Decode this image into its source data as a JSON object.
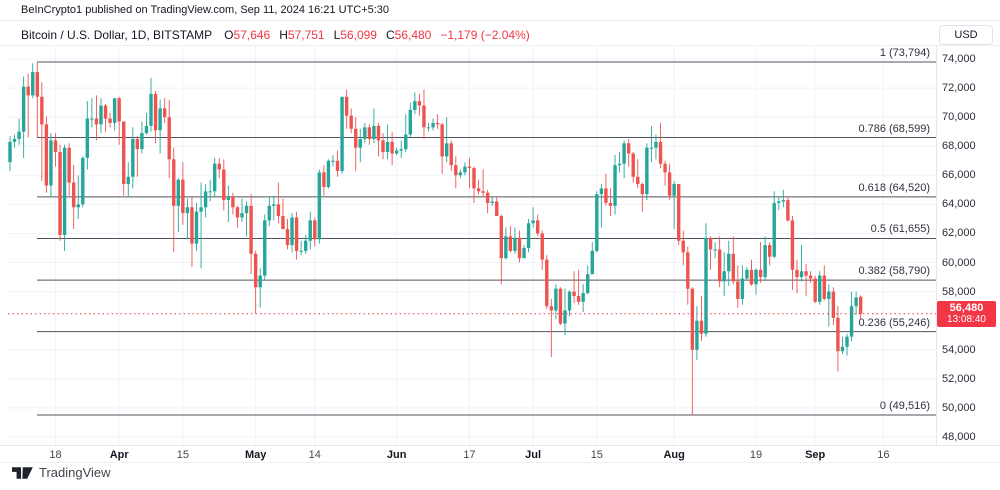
{
  "attribution": "BeInCrypto1 published on TradingView.com, Sep 11, 2024 16:21 UTC+5:30",
  "header": {
    "symbol": "Bitcoin / U.S. Dollar, 1D, BITSTAMP",
    "ohlc": [
      {
        "k": "O",
        "v": "57,646"
      },
      {
        "k": "H",
        "v": "57,751"
      },
      {
        "k": "L",
        "v": "56,099"
      },
      {
        "k": "C",
        "v": "56,480"
      }
    ],
    "change": "−1,179 (−2.04%)"
  },
  "axis_currency": "USD",
  "price_tag": {
    "price": "56,480",
    "countdown": "13:08:40"
  },
  "watermark": "TradingView",
  "colors": {
    "up": "#26a69a",
    "down": "#ef5350",
    "accent_red": "#f23645",
    "grid": "#f0f3fa",
    "fib_line": "#50535e",
    "text": "#131722"
  },
  "fib_levels": [
    {
      "label": "1 (73,794)",
      "price": 73794
    },
    {
      "label": "0.786 (68,599)",
      "price": 68599
    },
    {
      "label": "0.618 (64,520)",
      "price": 64520
    },
    {
      "label": "0.5 (61,655)",
      "price": 61655
    },
    {
      "label": "0.382 (58,790)",
      "price": 58790
    },
    {
      "label": "0.236 (55,246)",
      "price": 55246
    },
    {
      "label": "0 (49,516)",
      "price": 49516
    }
  ],
  "chart_data": {
    "type": "candlestick",
    "title": "Bitcoin / U.S. Dollar, 1D, BITSTAMP",
    "interval": "1D",
    "start_date": "2024-03-08",
    "end_date": "2024-09-11",
    "last_price": 56480,
    "grid": true,
    "y_axis": {
      "range": [
        48000,
        74000
      ],
      "ticks": [
        {
          "price": 74000,
          "label": "74,000"
        },
        {
          "price": 72000,
          "label": "72,000"
        },
        {
          "price": 70000,
          "label": "70,000"
        },
        {
          "price": 68000,
          "label": "68,000"
        },
        {
          "price": 66000,
          "label": "66,000"
        },
        {
          "price": 64000,
          "label": "64,000"
        },
        {
          "price": 62000,
          "label": "62,000"
        },
        {
          "price": 60000,
          "label": "60,000"
        },
        {
          "price": 58000,
          "label": "58,000"
        },
        {
          "price": 54000,
          "label": "54,000"
        },
        {
          "price": 52000,
          "label": "52,000"
        },
        {
          "price": 50000,
          "label": "50,000"
        },
        {
          "price": 48000,
          "label": "48,000"
        }
      ]
    },
    "x_axis": {
      "ticks": [
        {
          "label": "18",
          "day": 10,
          "bold": false
        },
        {
          "label": "Apr",
          "day": 24,
          "bold": true
        },
        {
          "label": "15",
          "day": 38,
          "bold": false
        },
        {
          "label": "May",
          "day": 54,
          "bold": true
        },
        {
          "label": "14",
          "day": 67,
          "bold": false
        },
        {
          "label": "Jun",
          "day": 85,
          "bold": true
        },
        {
          "label": "17",
          "day": 101,
          "bold": false
        },
        {
          "label": "Jul",
          "day": 115,
          "bold": true
        },
        {
          "label": "15",
          "day": 129,
          "bold": false
        },
        {
          "label": "Aug",
          "day": 146,
          "bold": true
        },
        {
          "label": "19",
          "day": 164,
          "bold": false
        },
        {
          "label": "Sep",
          "day": 177,
          "bold": true
        },
        {
          "label": "16",
          "day": 192,
          "bold": false
        }
      ]
    },
    "candles": [
      [
        66900,
        68700,
        66300,
        68300
      ],
      [
        68300,
        68800,
        67900,
        68500
      ],
      [
        68500,
        69900,
        68100,
        69000
      ],
      [
        69000,
        72800,
        67200,
        72100
      ],
      [
        72100,
        73000,
        68600,
        71500
      ],
      [
        71500,
        73700,
        71300,
        73100
      ],
      [
        73100,
        73794,
        68600,
        71400
      ],
      [
        71400,
        72400,
        65600,
        69500
      ],
      [
        69500,
        70050,
        64800,
        65300
      ],
      [
        65300,
        68900,
        64500,
        68400
      ],
      [
        68400,
        68900,
        66600,
        67600
      ],
      [
        67600,
        68100,
        61500,
        61900
      ],
      [
        61900,
        68100,
        60800,
        67900
      ],
      [
        67900,
        68200,
        64600,
        65500
      ],
      [
        65500,
        66700,
        62300,
        63800
      ],
      [
        63800,
        66000,
        63000,
        64000
      ],
      [
        64000,
        67300,
        63800,
        67200
      ],
      [
        67200,
        71100,
        66400,
        69900
      ],
      [
        69900,
        71300,
        69300,
        69900
      ],
      [
        69900,
        71500,
        68400,
        69500
      ],
      [
        69500,
        71300,
        68900,
        70800
      ],
      [
        70800,
        70900,
        69000,
        69900
      ],
      [
        69900,
        70300,
        69300,
        69600
      ],
      [
        69600,
        71300,
        69100,
        71300
      ],
      [
        71300,
        71400,
        68100,
        69700
      ],
      [
        69700,
        69700,
        64600,
        65400
      ],
      [
        65400,
        66900,
        64500,
        65900
      ],
      [
        65900,
        69300,
        65100,
        68500
      ],
      [
        68500,
        68700,
        65900,
        67800
      ],
      [
        67800,
        69700,
        67500,
        68900
      ],
      [
        68900,
        70300,
        68800,
        69400
      ],
      [
        69400,
        72700,
        69000,
        71600
      ],
      [
        71600,
        71800,
        68200,
        69100
      ],
      [
        69100,
        71200,
        67500,
        70600
      ],
      [
        70600,
        71300,
        69600,
        70000
      ],
      [
        70000,
        71200,
        65800,
        67100
      ],
      [
        67100,
        67900,
        60700,
        63900
      ],
      [
        63900,
        65800,
        62100,
        65700
      ],
      [
        65700,
        66900,
        62600,
        63400
      ],
      [
        63400,
        64400,
        61600,
        63800
      ],
      [
        63800,
        64500,
        59700,
        61300
      ],
      [
        61300,
        64100,
        60800,
        63500
      ],
      [
        63500,
        65500,
        59600,
        63800
      ],
      [
        63800,
        65400,
        63100,
        64900
      ],
      [
        64900,
        65700,
        64200,
        64900
      ],
      [
        64900,
        67200,
        64500,
        66800
      ],
      [
        66800,
        67200,
        65800,
        66400
      ],
      [
        66400,
        67100,
        63600,
        64300
      ],
      [
        64300,
        65300,
        62800,
        64500
      ],
      [
        64500,
        64800,
        63300,
        63800
      ],
      [
        63800,
        63900,
        62400,
        63100
      ],
      [
        63100,
        64400,
        62800,
        63400
      ],
      [
        63400,
        64200,
        61800,
        63900
      ],
      [
        63900,
        64700,
        59200,
        60600
      ],
      [
        60600,
        60800,
        56500,
        58300
      ],
      [
        58300,
        59600,
        56900,
        59100
      ],
      [
        59100,
        63300,
        58800,
        62900
      ],
      [
        62900,
        64500,
        62500,
        63900
      ],
      [
        63900,
        64600,
        62900,
        64000
      ],
      [
        64000,
        65500,
        62700,
        63200
      ],
      [
        63200,
        64400,
        62300,
        62300
      ],
      [
        62300,
        63000,
        60900,
        61200
      ],
      [
        61200,
        63400,
        60700,
        63100
      ],
      [
        63100,
        63500,
        60200,
        60800
      ],
      [
        60800,
        61500,
        60500,
        60800
      ],
      [
        60800,
        61900,
        60600,
        61500
      ],
      [
        61500,
        63500,
        60900,
        62900
      ],
      [
        62900,
        63100,
        61100,
        61600
      ],
      [
        61600,
        66400,
        61300,
        66200
      ],
      [
        66200,
        66700,
        64600,
        65200
      ],
      [
        65200,
        67100,
        65100,
        67000
      ],
      [
        67000,
        67400,
        66600,
        67000
      ],
      [
        67000,
        67700,
        65900,
        66300
      ],
      [
        66300,
        71400,
        66100,
        71400
      ],
      [
        71400,
        71900,
        69200,
        70100
      ],
      [
        70100,
        70600,
        68900,
        69200
      ],
      [
        69200,
        70000,
        66300,
        67900
      ],
      [
        67900,
        69200,
        66900,
        68500
      ],
      [
        68500,
        69600,
        68200,
        69300
      ],
      [
        69300,
        69500,
        68100,
        68500
      ],
      [
        68500,
        70600,
        68200,
        69400
      ],
      [
        69400,
        69600,
        67300,
        68400
      ],
      [
        68400,
        68900,
        67100,
        67600
      ],
      [
        67600,
        69500,
        67100,
        68300
      ],
      [
        68300,
        69000,
        66700,
        67500
      ],
      [
        67500,
        67900,
        67400,
        67700
      ],
      [
        67700,
        68400,
        67200,
        67800
      ],
      [
        67800,
        70200,
        67600,
        68800
      ],
      [
        68800,
        71000,
        68600,
        70500
      ],
      [
        70500,
        71700,
        70200,
        71100
      ],
      [
        71100,
        71600,
        70100,
        70800
      ],
      [
        70800,
        71900,
        68500,
        69300
      ],
      [
        69300,
        69600,
        69000,
        69300
      ],
      [
        69300,
        69900,
        69100,
        69600
      ],
      [
        69600,
        70200,
        69200,
        69500
      ],
      [
        69500,
        69600,
        66100,
        67300
      ],
      [
        67300,
        70000,
        66900,
        68200
      ],
      [
        68200,
        68400,
        66300,
        66700
      ],
      [
        66700,
        67300,
        65100,
        66000
      ],
      [
        66000,
        66400,
        65800,
        66200
      ],
      [
        66200,
        66900,
        66000,
        66600
      ],
      [
        66600,
        67200,
        65100,
        66500
      ],
      [
        66500,
        66600,
        64100,
        65100
      ],
      [
        65100,
        65700,
        64700,
        64900
      ],
      [
        64900,
        66400,
        64500,
        64800
      ],
      [
        64800,
        65000,
        63400,
        64100
      ],
      [
        64100,
        64500,
        63900,
        64200
      ],
      [
        64200,
        64500,
        63200,
        63200
      ],
      [
        63200,
        63300,
        58500,
        60300
      ],
      [
        60300,
        62400,
        60200,
        61800
      ],
      [
        61800,
        62500,
        60700,
        60800
      ],
      [
        60800,
        62400,
        60600,
        61700
      ],
      [
        61700,
        62200,
        60000,
        60300
      ],
      [
        60300,
        61200,
        60300,
        61000
      ],
      [
        61000,
        63000,
        60700,
        62700
      ],
      [
        62700,
        63800,
        62400,
        62900
      ],
      [
        62900,
        63300,
        61800,
        62000
      ],
      [
        62000,
        62200,
        59500,
        60200
      ],
      [
        60200,
        60500,
        56800,
        57000
      ],
      [
        57000,
        57500,
        53500,
        56700
      ],
      [
        56700,
        58500,
        56100,
        58200
      ],
      [
        58200,
        58300,
        55700,
        55800
      ],
      [
        55800,
        58200,
        55000,
        56700
      ],
      [
        56700,
        58100,
        56300,
        58000
      ],
      [
        58000,
        59400,
        57200,
        57700
      ],
      [
        57700,
        59500,
        57100,
        57300
      ],
      [
        57300,
        58500,
        56600,
        57900
      ],
      [
        57900,
        59800,
        57800,
        59200
      ],
      [
        59200,
        61400,
        59200,
        60800
      ],
      [
        60800,
        64900,
        60700,
        64700
      ],
      [
        64700,
        65400,
        62400,
        65100
      ],
      [
        65100,
        66100,
        63900,
        64100
      ],
      [
        64100,
        65100,
        63200,
        63900
      ],
      [
        63900,
        67400,
        63300,
        66700
      ],
      [
        66700,
        67600,
        66200,
        66800
      ],
      [
        66800,
        68400,
        65800,
        68200
      ],
      [
        68200,
        68500,
        66600,
        67500
      ],
      [
        67500,
        67600,
        65500,
        65900
      ],
      [
        65900,
        67100,
        65100,
        65400
      ],
      [
        65400,
        65500,
        63500,
        64700
      ],
      [
        64700,
        68200,
        64300,
        67900
      ],
      [
        67900,
        69400,
        66900,
        67900
      ],
      [
        67900,
        68800,
        67100,
        68300
      ],
      [
        68300,
        69600,
        66500,
        66800
      ],
      [
        66800,
        67000,
        65300,
        66200
      ],
      [
        66200,
        66800,
        64300,
        64600
      ],
      [
        64600,
        65600,
        62300,
        65400
      ],
      [
        65400,
        65400,
        61200,
        61500
      ],
      [
        61500,
        62200,
        59800,
        60700
      ],
      [
        60700,
        61100,
        57100,
        58200
      ],
      [
        58200,
        58300,
        49516,
        54000
      ],
      [
        54000,
        57000,
        53300,
        56000
      ],
      [
        56000,
        57700,
        54600,
        55100
      ],
      [
        55100,
        62700,
        54900,
        61700
      ],
      [
        61700,
        61800,
        59500,
        60900
      ],
      [
        60900,
        61400,
        60300,
        60900
      ],
      [
        60900,
        61800,
        58300,
        58700
      ],
      [
        58700,
        60700,
        57700,
        59400
      ],
      [
        59400,
        61500,
        58400,
        60600
      ],
      [
        60600,
        61800,
        58500,
        58700
      ],
      [
        58700,
        59800,
        56900,
        57500
      ],
      [
        57500,
        59800,
        57100,
        58900
      ],
      [
        58900,
        59700,
        58800,
        59500
      ],
      [
        59500,
        60200,
        58400,
        58500
      ],
      [
        58500,
        59600,
        57800,
        59500
      ],
      [
        59500,
        61400,
        58600,
        59000
      ],
      [
        59000,
        61800,
        58800,
        61200
      ],
      [
        61200,
        61400,
        59800,
        60400
      ],
      [
        60400,
        64900,
        60300,
        64100
      ],
      [
        64100,
        64500,
        63600,
        64200
      ],
      [
        64200,
        65000,
        63800,
        64300
      ],
      [
        64300,
        64500,
        62800,
        62900
      ],
      [
        62900,
        63200,
        58100,
        59500
      ],
      [
        59500,
        60200,
        57900,
        59000
      ],
      [
        59000,
        61200,
        58700,
        59400
      ],
      [
        59400,
        59900,
        57700,
        59100
      ],
      [
        59100,
        59400,
        58600,
        58900
      ],
      [
        58900,
        59100,
        57200,
        57300
      ],
      [
        57300,
        59400,
        57100,
        59100
      ],
      [
        59100,
        59800,
        57400,
        57500
      ],
      [
        57500,
        58500,
        55600,
        58000
      ],
      [
        58000,
        58300,
        55700,
        56200
      ],
      [
        56200,
        57000,
        52500,
        53900
      ],
      [
        53900,
        54900,
        53700,
        54200
      ],
      [
        54200,
        55100,
        53600,
        54900
      ],
      [
        54900,
        58000,
        54600,
        57000
      ],
      [
        57000,
        58000,
        56400,
        57600
      ],
      [
        57646,
        57751,
        56099,
        56480
      ]
    ]
  }
}
